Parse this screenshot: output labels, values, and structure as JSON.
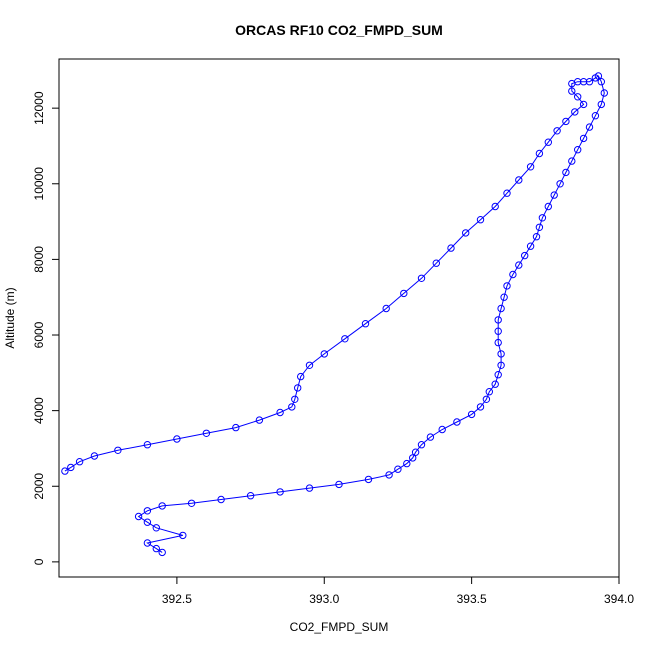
{
  "chart_data": {
    "type": "line",
    "title": "ORCAS RF10 CO2_FMPD_SUM",
    "xlabel": "CO2_FMPD_SUM",
    "ylabel": "Altitude (m)",
    "xlim": [
      392.1,
      394.0
    ],
    "ylim": [
      -400,
      13300
    ],
    "xticks": [
      392.5,
      393.0,
      393.5,
      394.0
    ],
    "xtick_labels": [
      "392.5",
      "393.0",
      "393.5",
      "394.0"
    ],
    "yticks": [
      0,
      2000,
      4000,
      6000,
      8000,
      10000,
      12000
    ],
    "ytick_labels": [
      "0",
      "2000",
      "4000",
      "6000",
      "8000",
      "10000",
      "12000"
    ],
    "grid": false,
    "marker": "open-circle",
    "series_color": "#0000ff",
    "series": [
      {
        "x": [
          392.45,
          392.43,
          392.4,
          392.52,
          392.43,
          392.4,
          392.37,
          392.4,
          392.45,
          392.55,
          392.65,
          392.75,
          392.85,
          392.95,
          393.05,
          393.15,
          393.22,
          393.25,
          393.28,
          393.3,
          393.31,
          393.33,
          393.36,
          393.4,
          393.45,
          393.5,
          393.53,
          393.55,
          393.56,
          393.58,
          393.59,
          393.6,
          393.6,
          393.59,
          393.59,
          393.59,
          393.6,
          393.61,
          393.62,
          393.64,
          393.66,
          393.68,
          393.7,
          393.72,
          393.73,
          393.74,
          393.76,
          393.78,
          393.8,
          393.82,
          393.84,
          393.86,
          393.88,
          393.9,
          393.92,
          393.94,
          393.95,
          393.94,
          393.93,
          393.92,
          393.9,
          393.88,
          393.86,
          393.84,
          393.84,
          393.86,
          393.88,
          393.85,
          393.82,
          393.79,
          393.76,
          393.73,
          393.7,
          393.66,
          393.62,
          393.58,
          393.53,
          393.48,
          393.43,
          393.38,
          393.33,
          393.27,
          393.21,
          393.14,
          393.07,
          393.0,
          392.95,
          392.92,
          392.91,
          392.9,
          392.89,
          392.85,
          392.78,
          392.7,
          392.6,
          392.5,
          392.4,
          392.3,
          392.22,
          392.17,
          392.14,
          392.12
        ],
        "y": [
          250,
          350,
          500,
          700,
          900,
          1050,
          1200,
          1350,
          1480,
          1550,
          1650,
          1750,
          1850,
          1950,
          2050,
          2180,
          2300,
          2450,
          2600,
          2750,
          2900,
          3100,
          3300,
          3500,
          3700,
          3900,
          4100,
          4300,
          4500,
          4700,
          4950,
          5200,
          5500,
          5800,
          6100,
          6400,
          6700,
          7000,
          7300,
          7600,
          7850,
          8100,
          8350,
          8600,
          8850,
          9100,
          9400,
          9700,
          10000,
          10300,
          10600,
          10900,
          11200,
          11500,
          11800,
          12100,
          12400,
          12700,
          12850,
          12800,
          12700,
          12700,
          12700,
          12650,
          12450,
          12300,
          12100,
          11900,
          11650,
          11400,
          11100,
          10800,
          10450,
          10100,
          9750,
          9400,
          9050,
          8700,
          8300,
          7900,
          7500,
          7100,
          6700,
          6300,
          5900,
          5500,
          5200,
          4900,
          4600,
          4300,
          4100,
          3950,
          3750,
          3550,
          3400,
          3250,
          3100,
          2950,
          2800,
          2650,
          2500,
          2400
        ]
      }
    ]
  }
}
